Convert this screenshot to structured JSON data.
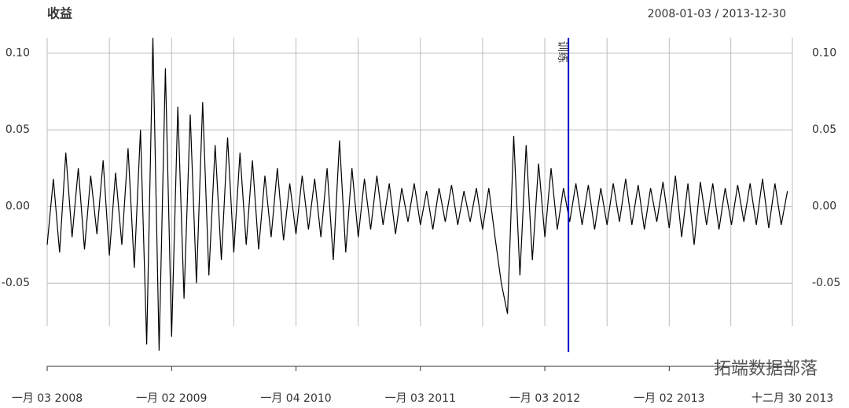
{
  "chart_data": {
    "type": "line",
    "title": "收益",
    "subtitle": "2008-01-03 / 2013-12-30",
    "xlim": [
      2008.0,
      2013.99
    ],
    "ylim": [
      -0.095,
      0.11
    ],
    "xticks": [
      {
        "value": 2008.0,
        "label": "一月 03 2008"
      },
      {
        "value": 2009.0,
        "label": "一月 02 2009"
      },
      {
        "value": 2010.0,
        "label": "一月 04 2010"
      },
      {
        "value": 2011.0,
        "label": "一月 03 2011"
      },
      {
        "value": 2012.0,
        "label": "一月 03 2012"
      },
      {
        "value": 2013.0,
        "label": "一月 02 2013"
      },
      {
        "value": 2013.99,
        "label": "十二月 30 2013"
      }
    ],
    "yticks": [
      {
        "value": 0.1,
        "label": "0.10"
      },
      0.05,
      {
        "value": 0,
        "label": "0.00"
      },
      -0.05
    ],
    "grid": true,
    "event": {
      "x": 2012.19,
      "label": "训练",
      "color": "#0000cc"
    },
    "watermark": "拓端数据部落",
    "series": [
      {
        "color": "#000000",
        "x": [
          2008,
          2008.05,
          2008.1,
          2008.15,
          2008.2,
          2008.25,
          2008.3,
          2008.35,
          2008.4,
          2008.45,
          2008.5,
          2008.55,
          2008.6,
          2008.65,
          2008.7,
          2008.75,
          2008.8,
          2008.85,
          2008.9,
          2008.95,
          2009,
          2009.05,
          2009.1,
          2009.15,
          2009.2,
          2009.25,
          2009.3,
          2009.35,
          2009.4,
          2009.45,
          2009.5,
          2009.55,
          2009.6,
          2009.65,
          2009.7,
          2009.75,
          2009.8,
          2009.85,
          2009.9,
          2009.95,
          2010,
          2010.05,
          2010.1,
          2010.15,
          2010.2,
          2010.25,
          2010.3,
          2010.35,
          2010.4,
          2010.45,
          2010.5,
          2010.55,
          2010.6,
          2010.65,
          2010.7,
          2010.75,
          2010.8,
          2010.85,
          2010.9,
          2010.95,
          2011,
          2011.05,
          2011.1,
          2011.15,
          2011.2,
          2011.25,
          2011.3,
          2011.35,
          2011.4,
          2011.45,
          2011.5,
          2011.55,
          2011.6,
          2011.65,
          2011.7,
          2011.75,
          2011.8,
          2011.85,
          2011.9,
          2011.95,
          2012,
          2012.05,
          2012.1,
          2012.15,
          2012.2,
          2012.25,
          2012.3,
          2012.35,
          2012.4,
          2012.45,
          2012.5,
          2012.55,
          2012.6,
          2012.65,
          2012.7,
          2012.75,
          2012.8,
          2012.85,
          2012.9,
          2012.95,
          2013,
          2013.05,
          2013.1,
          2013.15,
          2013.2,
          2013.25,
          2013.3,
          2013.35,
          2013.4,
          2013.45,
          2013.5,
          2013.55,
          2013.6,
          2013.65,
          2013.7,
          2013.75,
          2013.8,
          2013.85,
          2013.9,
          2013.95
        ],
        "values": [
          -0.025,
          0.018,
          -0.03,
          0.035,
          -0.02,
          0.025,
          -0.028,
          0.02,
          -0.018,
          0.03,
          -0.032,
          0.022,
          -0.025,
          0.038,
          -0.04,
          0.05,
          -0.09,
          0.11,
          -0.094,
          0.09,
          -0.085,
          0.065,
          -0.06,
          0.06,
          -0.05,
          0.068,
          -0.045,
          0.04,
          -0.035,
          0.045,
          -0.03,
          0.035,
          -0.025,
          0.03,
          -0.028,
          0.02,
          -0.02,
          0.025,
          -0.022,
          0.015,
          -0.018,
          0.02,
          -0.015,
          0.018,
          -0.02,
          0.025,
          -0.035,
          0.043,
          -0.03,
          0.025,
          -0.02,
          0.018,
          -0.015,
          0.02,
          -0.012,
          0.015,
          -0.018,
          0.012,
          -0.01,
          0.015,
          -0.012,
          0.01,
          -0.015,
          0.012,
          -0.01,
          0.014,
          -0.012,
          0.01,
          -0.01,
          0.012,
          -0.015,
          0.012,
          -0.02,
          -0.05,
          -0.07,
          0.046,
          -0.045,
          0.04,
          -0.035,
          0.028,
          -0.02,
          0.025,
          -0.015,
          0.012,
          -0.01,
          0.015,
          -0.012,
          0.014,
          -0.015,
          0.012,
          -0.012,
          0.015,
          -0.01,
          0.018,
          -0.012,
          0.014,
          -0.015,
          0.012,
          -0.01,
          0.016,
          -0.014,
          0.02,
          -0.02,
          0.015,
          -0.025,
          0.016,
          -0.012,
          0.015,
          -0.015,
          0.012,
          -0.012,
          0.014,
          -0.01,
          0.015,
          -0.012,
          0.018,
          -0.014,
          0.015,
          -0.012,
          0.01
        ]
      }
    ]
  }
}
